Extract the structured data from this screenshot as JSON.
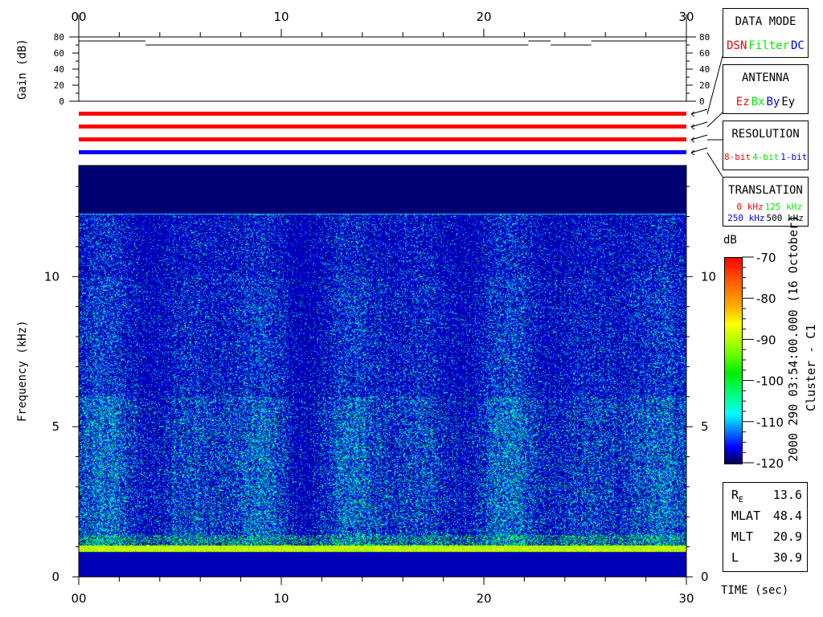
{
  "time_axis": {
    "ticks": [
      "00",
      "10",
      "20",
      "30"
    ],
    "label": "TIME (sec)"
  },
  "gain_panel": {
    "ylabel": "Gain (dB)",
    "yticks": [
      "80",
      "60",
      "40",
      "20",
      "0"
    ]
  },
  "spectrogram": {
    "ylabel": "Frequency (kHz)",
    "yticks": [
      "0",
      "5",
      "10"
    ]
  },
  "colorbar": {
    "unit": "dB",
    "ticks": [
      "-70",
      "-80",
      "-90",
      "-100",
      "-110",
      "-120"
    ]
  },
  "title_vertical": "2000 290 03:54:00.000 (16 October)",
  "spacecraft": "Cluster - C1",
  "data_mode": {
    "title": "DATA MODE",
    "options": [
      {
        "label": "DSN",
        "color": "#ff0000"
      },
      {
        "label": "Filter",
        "color": "#00ee00"
      },
      {
        "label": "DC",
        "color": "#0000ff"
      }
    ]
  },
  "antenna": {
    "title": "ANTENNA",
    "options": [
      {
        "label": "Ez",
        "color": "#ff0000"
      },
      {
        "label": "Bx",
        "color": "#00ee00"
      },
      {
        "label": "By",
        "color": "#0000ff"
      },
      {
        "label": "Ey",
        "color": "#000000"
      }
    ]
  },
  "resolution": {
    "title": "RESOLUTION",
    "options": [
      {
        "label": "8-bit",
        "color": "#ff0000"
      },
      {
        "label": "4-bit",
        "color": "#00ee00"
      },
      {
        "label": "1-bit",
        "color": "#0000ff"
      }
    ]
  },
  "translation": {
    "title": "TRANSLATION",
    "options": [
      {
        "label": "0 kHz",
        "color": "#ff0000"
      },
      {
        "label": "125 kHz",
        "color": "#00ee00"
      },
      {
        "label": "250 kHz",
        "color": "#0000ff"
      },
      {
        "label": "500 kHz",
        "color": "#000000"
      }
    ]
  },
  "status_bars": [
    {
      "name": "data-mode",
      "color": "#ff0000"
    },
    {
      "name": "antenna",
      "color": "#ff0000"
    },
    {
      "name": "resolution",
      "color": "#ff0000"
    },
    {
      "name": "translation",
      "color": "#0000ff"
    }
  ],
  "ephemeris": [
    {
      "label": "R",
      "sub": "E",
      "value": "13.6"
    },
    {
      "label": "MLAT",
      "sub": "",
      "value": "48.4"
    },
    {
      "label": "MLT",
      "sub": "",
      "value": "20.9"
    },
    {
      "label": "L",
      "sub": "",
      "value": "30.9"
    }
  ],
  "chart_data": [
    {
      "type": "line",
      "title": "",
      "xlabel": "",
      "ylabel": "Gain (dB)",
      "xlim": [
        0,
        30
      ],
      "ylim": [
        0,
        80
      ],
      "series": [
        {
          "segments": [
            {
              "x": [
                0,
                3.3
              ],
              "y": 75
            },
            {
              "x": [
                3.3,
                22.2
              ],
              "y": 70
            },
            {
              "x": [
                22.2,
                23.3
              ],
              "y": 75
            },
            {
              "x": [
                23.3,
                25.3
              ],
              "y": 70
            },
            {
              "x": [
                25.3,
                30
              ],
              "y": 75
            }
          ]
        }
      ]
    },
    {
      "type": "heatmap",
      "xlabel": "TIME (sec)",
      "ylabel": "Frequency (kHz)",
      "xlim": [
        0,
        30
      ],
      "ylim": [
        0,
        13.7
      ],
      "colorbar_range_db": [
        -120,
        -70
      ],
      "colorbar_label": "dB",
      "colormap": "rainbow (navy-blue-cyan-green-yellow-red)"
    }
  ]
}
